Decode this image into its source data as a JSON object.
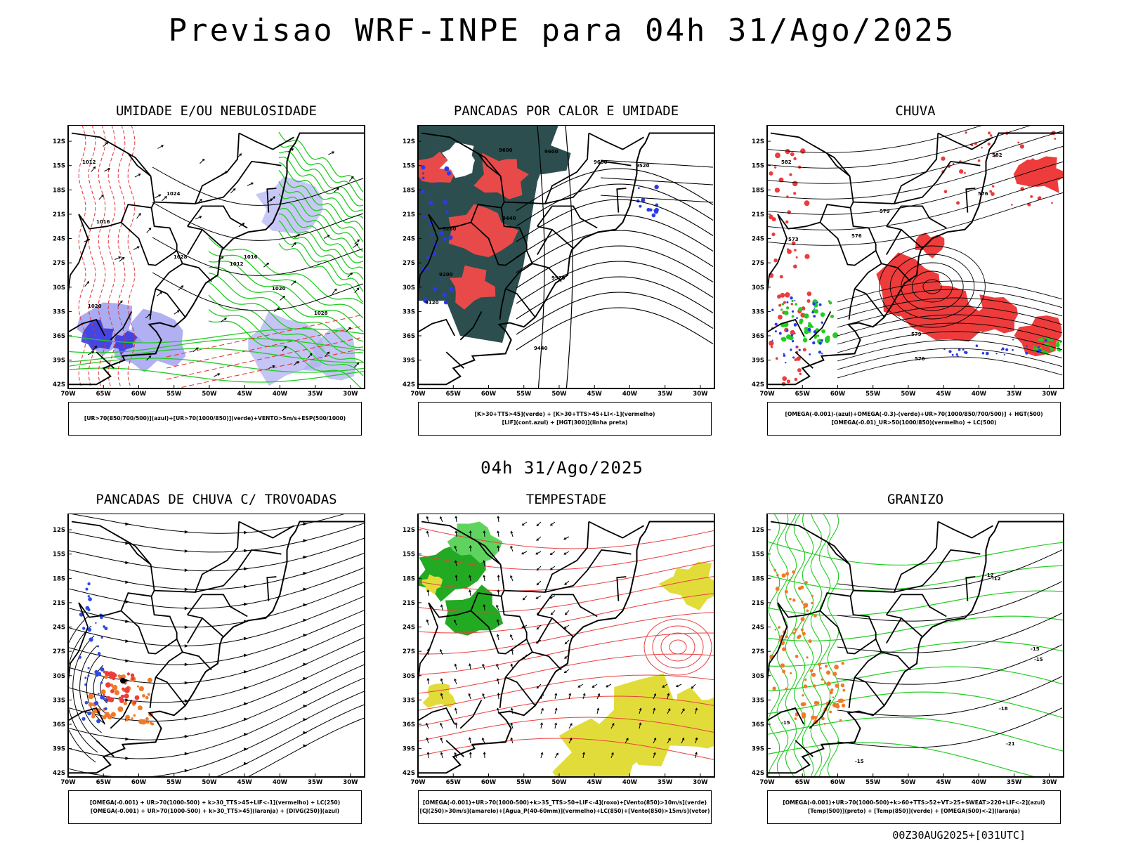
{
  "header": {
    "title": "Previsao WRF-INPE  para 04h 31/Ago/2025",
    "mid_title": "04h 31/Ago/2025",
    "footer": "00Z30AUG2025+[031UTC]"
  },
  "axes": {
    "lat_labels": [
      "12S",
      "15S",
      "18S",
      "21S",
      "24S",
      "27S",
      "30S",
      "33S",
      "36S",
      "39S",
      "42S"
    ],
    "lon_labels": [
      "70W",
      "65W",
      "60W",
      "55W",
      "50W",
      "45W",
      "40W",
      "35W",
      "30W"
    ]
  },
  "panels": [
    {
      "title": "UMIDADE E/OU NEBULOSIDADE",
      "legend": [
        "[UR>70(850/700/500)](azul)+[UR>70(1000/850)](verde)+VENTO>5m/s+ESP(500/1000)"
      ],
      "contour_labels": [
        "1012",
        "1016",
        "1020",
        "1024",
        "1028",
        "1012",
        "1016",
        "1020",
        "1024",
        "1028"
      ]
    },
    {
      "title": "PANCADAS POR CALOR E UMIDADE",
      "legend": [
        "[K>30+TTS>45](verde) + [K>30+TTS>45+LI<-1](vermelho)",
        "[LIF](cont.azul) + [HGT(300)](linha preta)"
      ],
      "contour_labels": [
        "9600",
        "9600",
        "9600",
        "9520",
        "9440",
        "9520",
        "9440",
        "9280",
        "9200",
        "9120"
      ]
    },
    {
      "title": "CHUVA",
      "legend": [
        "[OMEGA(-0.001)-(azul)+OMEGA(-0.3)-(verde)+UR>70(1000/850/700/500)] + HGT(500)",
        "[OMEGA(-0.01)_UR>50(1000/850)(vermelho) + LC(500)"
      ],
      "contour_labels": [
        "582",
        "582",
        "579",
        "576",
        "573",
        "576",
        "579",
        "576"
      ]
    },
    {
      "title": "PANCADAS DE CHUVA C/ TROVOADAS",
      "legend": [
        "[OMEGA(-0.001) + UR>70(1000-500) + k>30_TTS>45+LIF<-1](vermelho) + LC(250)",
        "[OMEGA(-0.001) + UR>70(1000-500) + k>30_TTS>45](laranja) + [DIVG(250)](azul)"
      ],
      "contour_labels": []
    },
    {
      "title": "TEMPESTADE",
      "legend": [
        "[OMEGA(-0.001)+UR>70(1000-500)+k>35_TTS>50+LIF<-4](roxo)+[Vento(850)>10m/s](verde)",
        "[CJ(250)>30m/s](amarelo)+[Agua_P(40-60mm)](vermelho)+LC(850)+[Vento(850)>15m/s](vetor)"
      ],
      "contour_labels": []
    },
    {
      "title": "GRANIZO",
      "legend": [
        "[OMEGA(-0.001)+UR>70(1000-500)+k>60+TTS>52+VT>25+SWEAT>220+LIF<-2](azul)",
        "[Temp(500)](preto) + [Temp(850)](verde) + [OMEGA(500)<-2](laranja)"
      ],
      "contour_labels": [
        "-12",
        "-12",
        "-15",
        "-15",
        "-18",
        "-21",
        "-15",
        "-15"
      ]
    }
  ]
}
